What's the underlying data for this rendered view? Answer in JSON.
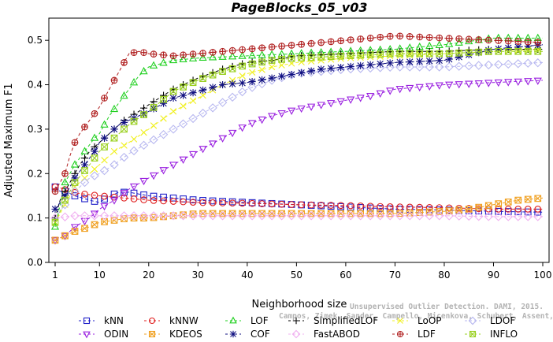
{
  "chart_data": {
    "type": "line",
    "title": "PageBlocks_05_v03",
    "xlabel": "Neighborhood size",
    "ylabel": "Adjusted Maximum F1",
    "xlim": [
      1,
      100
    ],
    "ylim": [
      0,
      0.55
    ],
    "x_ticks": [
      1,
      10,
      20,
      30,
      40,
      50,
      60,
      70,
      80,
      90,
      100
    ],
    "y_ticks": [
      0.0,
      0.1,
      0.2,
      0.3,
      0.4,
      0.5
    ],
    "y_tick_labels": [
      "0.0",
      "0.1",
      "0.2",
      "0.3",
      "0.4",
      "0.5"
    ],
    "legend_position": "bottom",
    "watermark": [
      "Unsupervised Outlier Detection. DAMI, 2015.",
      "Campos, Zimek, Sander, Campello, Micenkova, Schubert, Assent, Houle"
    ],
    "series": [
      {
        "name": "kNN",
        "color": "#1f1fc8",
        "marker": "square",
        "points": [
          [
            1,
            0.17
          ],
          [
            2,
            0.16
          ],
          [
            3,
            0.16
          ],
          [
            5,
            0.15
          ],
          [
            8,
            0.14
          ],
          [
            10,
            0.135
          ],
          [
            12,
            0.15
          ],
          [
            14,
            0.158
          ],
          [
            16,
            0.158
          ],
          [
            20,
            0.15
          ],
          [
            25,
            0.145
          ],
          [
            30,
            0.14
          ],
          [
            40,
            0.135
          ],
          [
            50,
            0.13
          ],
          [
            60,
            0.125
          ],
          [
            70,
            0.12
          ],
          [
            80,
            0.118
          ],
          [
            90,
            0.115
          ],
          [
            100,
            0.113
          ]
        ]
      },
      {
        "name": "kNNW",
        "color": "#e02020",
        "marker": "circle",
        "points": [
          [
            1,
            0.17
          ],
          [
            2,
            0.168
          ],
          [
            4,
            0.16
          ],
          [
            6,
            0.155
          ],
          [
            10,
            0.15
          ],
          [
            15,
            0.145
          ],
          [
            20,
            0.14
          ],
          [
            30,
            0.135
          ],
          [
            40,
            0.133
          ],
          [
            50,
            0.13
          ],
          [
            60,
            0.128
          ],
          [
            70,
            0.125
          ],
          [
            80,
            0.123
          ],
          [
            90,
            0.12
          ],
          [
            100,
            0.12
          ]
        ]
      },
      {
        "name": "LOF",
        "color": "#20d020",
        "marker": "triangle",
        "points": [
          [
            1,
            0.08
          ],
          [
            2,
            0.13
          ],
          [
            3,
            0.18
          ],
          [
            5,
            0.22
          ],
          [
            7,
            0.25
          ],
          [
            9,
            0.28
          ],
          [
            10,
            0.29
          ],
          [
            12,
            0.33
          ],
          [
            14,
            0.36
          ],
          [
            16,
            0.39
          ],
          [
            18,
            0.42
          ],
          [
            20,
            0.44
          ],
          [
            25,
            0.455
          ],
          [
            30,
            0.46
          ],
          [
            40,
            0.465
          ],
          [
            50,
            0.47
          ],
          [
            60,
            0.475
          ],
          [
            70,
            0.48
          ],
          [
            80,
            0.49
          ],
          [
            90,
            0.505
          ],
          [
            100,
            0.505
          ]
        ]
      },
      {
        "name": "SimplifiedLOF",
        "color": "#000000",
        "marker": "plus",
        "points": [
          [
            1,
            0.1
          ],
          [
            2,
            0.14
          ],
          [
            4,
            0.18
          ],
          [
            6,
            0.22
          ],
          [
            8,
            0.25
          ],
          [
            10,
            0.27
          ],
          [
            12,
            0.29
          ],
          [
            15,
            0.32
          ],
          [
            18,
            0.34
          ],
          [
            20,
            0.355
          ],
          [
            25,
            0.39
          ],
          [
            30,
            0.415
          ],
          [
            35,
            0.435
          ],
          [
            40,
            0.45
          ],
          [
            45,
            0.455
          ],
          [
            50,
            0.465
          ],
          [
            60,
            0.47
          ],
          [
            70,
            0.475
          ],
          [
            80,
            0.475
          ],
          [
            90,
            0.48
          ],
          [
            100,
            0.48
          ]
        ]
      },
      {
        "name": "LoOP",
        "color": "#f0f020",
        "marker": "cross",
        "points": [
          [
            1,
            0.09
          ],
          [
            3,
            0.13
          ],
          [
            5,
            0.17
          ],
          [
            8,
            0.2
          ],
          [
            10,
            0.22
          ],
          [
            13,
            0.25
          ],
          [
            16,
            0.27
          ],
          [
            20,
            0.3
          ],
          [
            25,
            0.34
          ],
          [
            30,
            0.37
          ],
          [
            35,
            0.4
          ],
          [
            40,
            0.425
          ],
          [
            45,
            0.44
          ],
          [
            50,
            0.45
          ],
          [
            60,
            0.46
          ],
          [
            70,
            0.465
          ],
          [
            80,
            0.47
          ],
          [
            90,
            0.475
          ],
          [
            100,
            0.48
          ]
        ]
      },
      {
        "name": "LDOF",
        "color": "#b8b8f0",
        "marker": "diamond",
        "points": [
          [
            1,
            0.1
          ],
          [
            3,
            0.13
          ],
          [
            5,
            0.16
          ],
          [
            8,
            0.19
          ],
          [
            10,
            0.2
          ],
          [
            13,
            0.22
          ],
          [
            16,
            0.245
          ],
          [
            20,
            0.27
          ],
          [
            25,
            0.3
          ],
          [
            30,
            0.33
          ],
          [
            35,
            0.36
          ],
          [
            40,
            0.39
          ],
          [
            45,
            0.41
          ],
          [
            50,
            0.425
          ],
          [
            60,
            0.435
          ],
          [
            70,
            0.44
          ],
          [
            80,
            0.44
          ],
          [
            90,
            0.445
          ],
          [
            100,
            0.45
          ]
        ]
      },
      {
        "name": "ODIN",
        "color": "#9a20e0",
        "marker": "triangle-down",
        "points": [
          [
            1,
            0.05
          ],
          [
            3,
            0.06
          ],
          [
            5,
            0.08
          ],
          [
            8,
            0.1
          ],
          [
            10,
            0.12
          ],
          [
            13,
            0.14
          ],
          [
            16,
            0.165
          ],
          [
            20,
            0.19
          ],
          [
            25,
            0.22
          ],
          [
            30,
            0.25
          ],
          [
            35,
            0.28
          ],
          [
            40,
            0.31
          ],
          [
            45,
            0.33
          ],
          [
            50,
            0.345
          ],
          [
            55,
            0.355
          ],
          [
            60,
            0.365
          ],
          [
            65,
            0.375
          ],
          [
            70,
            0.39
          ],
          [
            80,
            0.4
          ],
          [
            90,
            0.405
          ],
          [
            100,
            0.41
          ]
        ]
      },
      {
        "name": "KDEOS",
        "color": "#f0a020",
        "marker": "square-x",
        "points": [
          [
            1,
            0.05
          ],
          [
            3,
            0.06
          ],
          [
            5,
            0.07
          ],
          [
            8,
            0.08
          ],
          [
            10,
            0.09
          ],
          [
            13,
            0.095
          ],
          [
            16,
            0.1
          ],
          [
            20,
            0.1
          ],
          [
            25,
            0.105
          ],
          [
            30,
            0.11
          ],
          [
            40,
            0.11
          ],
          [
            50,
            0.11
          ],
          [
            60,
            0.11
          ],
          [
            70,
            0.11
          ],
          [
            80,
            0.115
          ],
          [
            85,
            0.12
          ],
          [
            90,
            0.13
          ],
          [
            95,
            0.14
          ],
          [
            100,
            0.145
          ]
        ]
      },
      {
        "name": "COF",
        "color": "#101080",
        "marker": "asterisk",
        "points": [
          [
            1,
            0.12
          ],
          [
            3,
            0.15
          ],
          [
            5,
            0.19
          ],
          [
            7,
            0.22
          ],
          [
            9,
            0.25
          ],
          [
            10,
            0.27
          ],
          [
            12,
            0.29
          ],
          [
            14,
            0.31
          ],
          [
            16,
            0.32
          ],
          [
            18,
            0.33
          ],
          [
            20,
            0.34
          ],
          [
            25,
            0.37
          ],
          [
            30,
            0.385
          ],
          [
            35,
            0.4
          ],
          [
            40,
            0.405
          ],
          [
            45,
            0.415
          ],
          [
            50,
            0.425
          ],
          [
            55,
            0.435
          ],
          [
            60,
            0.44
          ],
          [
            65,
            0.445
          ],
          [
            70,
            0.45
          ],
          [
            80,
            0.455
          ],
          [
            90,
            0.48
          ],
          [
            100,
            0.49
          ]
        ]
      },
      {
        "name": "FastABOD",
        "color": "#f0b0f0",
        "marker": "diamond",
        "points": [
          [
            1,
            0.1
          ],
          [
            5,
            0.105
          ],
          [
            10,
            0.105
          ],
          [
            20,
            0.105
          ],
          [
            30,
            0.105
          ],
          [
            40,
            0.105
          ],
          [
            50,
            0.105
          ],
          [
            60,
            0.105
          ],
          [
            70,
            0.105
          ],
          [
            80,
            0.105
          ],
          [
            90,
            0.103
          ],
          [
            100,
            0.103
          ]
        ]
      },
      {
        "name": "LDF",
        "color": "#b02020",
        "marker": "circle-plus",
        "points": [
          [
            1,
            0.16
          ],
          [
            2,
            0.18
          ],
          [
            3,
            0.2
          ],
          [
            4,
            0.24
          ],
          [
            5,
            0.27
          ],
          [
            6,
            0.29
          ],
          [
            8,
            0.32
          ],
          [
            10,
            0.35
          ],
          [
            12,
            0.39
          ],
          [
            14,
            0.43
          ],
          [
            16,
            0.47
          ],
          [
            18,
            0.475
          ],
          [
            20,
            0.47
          ],
          [
            25,
            0.465
          ],
          [
            30,
            0.47
          ],
          [
            35,
            0.475
          ],
          [
            40,
            0.48
          ],
          [
            50,
            0.49
          ],
          [
            60,
            0.5
          ],
          [
            70,
            0.51
          ],
          [
            80,
            0.505
          ],
          [
            90,
            0.5
          ],
          [
            100,
            0.495
          ]
        ]
      },
      {
        "name": "INFLO",
        "color": "#9ad020",
        "marker": "square-x",
        "points": [
          [
            1,
            0.09
          ],
          [
            3,
            0.14
          ],
          [
            5,
            0.18
          ],
          [
            8,
            0.22
          ],
          [
            10,
            0.25
          ],
          [
            13,
            0.28
          ],
          [
            16,
            0.31
          ],
          [
            20,
            0.34
          ],
          [
            25,
            0.385
          ],
          [
            30,
            0.41
          ],
          [
            35,
            0.43
          ],
          [
            40,
            0.445
          ],
          [
            45,
            0.455
          ],
          [
            50,
            0.46
          ],
          [
            60,
            0.465
          ],
          [
            70,
            0.47
          ],
          [
            80,
            0.47
          ],
          [
            90,
            0.475
          ],
          [
            100,
            0.475
          ]
        ]
      }
    ]
  }
}
